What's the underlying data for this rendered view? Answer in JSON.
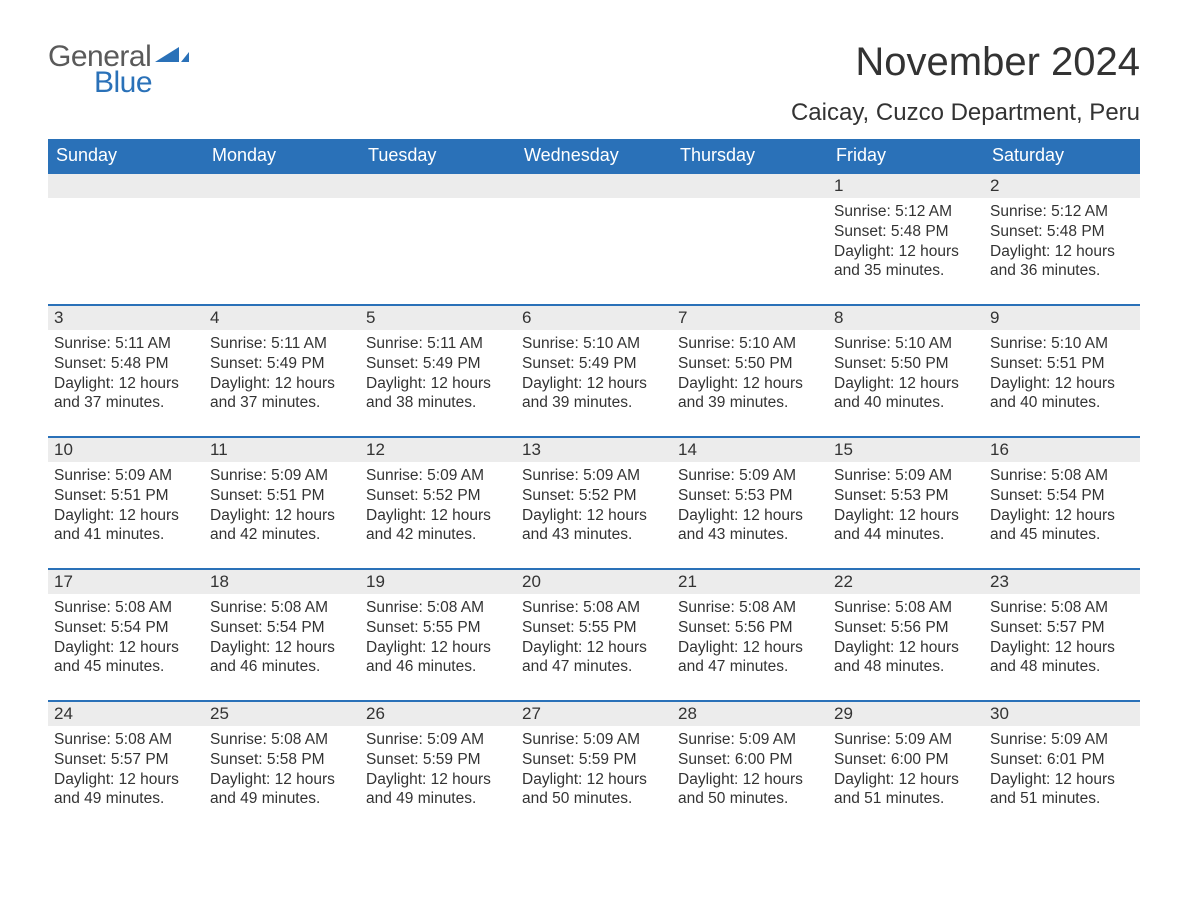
{
  "logo": {
    "word1": "General",
    "word2": "Blue",
    "icon_color": "#2a71b8",
    "text_gray": "#5a5a5a"
  },
  "title": "November 2024",
  "location": "Caicay, Cuzco Department, Peru",
  "colors": {
    "header_bg": "#2a71b8",
    "header_text": "#ffffff",
    "strip_bg": "#ececec",
    "body_text": "#333333",
    "row_border": "#2a71b8",
    "page_bg": "#ffffff"
  },
  "fonts": {
    "title_size_pt": 30,
    "location_size_pt": 18,
    "weekday_size_pt": 14,
    "daynum_size_pt": 13,
    "body_size_pt": 12,
    "family": "Arial"
  },
  "weekdays": [
    "Sunday",
    "Monday",
    "Tuesday",
    "Wednesday",
    "Thursday",
    "Friday",
    "Saturday"
  ],
  "first_weekday_index": 5,
  "days": [
    {
      "n": 1,
      "sunrise": "5:12 AM",
      "sunset": "5:48 PM",
      "daylight": "12 hours and 35 minutes."
    },
    {
      "n": 2,
      "sunrise": "5:12 AM",
      "sunset": "5:48 PM",
      "daylight": "12 hours and 36 minutes."
    },
    {
      "n": 3,
      "sunrise": "5:11 AM",
      "sunset": "5:48 PM",
      "daylight": "12 hours and 37 minutes."
    },
    {
      "n": 4,
      "sunrise": "5:11 AM",
      "sunset": "5:49 PM",
      "daylight": "12 hours and 37 minutes."
    },
    {
      "n": 5,
      "sunrise": "5:11 AM",
      "sunset": "5:49 PM",
      "daylight": "12 hours and 38 minutes."
    },
    {
      "n": 6,
      "sunrise": "5:10 AM",
      "sunset": "5:49 PM",
      "daylight": "12 hours and 39 minutes."
    },
    {
      "n": 7,
      "sunrise": "5:10 AM",
      "sunset": "5:50 PM",
      "daylight": "12 hours and 39 minutes."
    },
    {
      "n": 8,
      "sunrise": "5:10 AM",
      "sunset": "5:50 PM",
      "daylight": "12 hours and 40 minutes."
    },
    {
      "n": 9,
      "sunrise": "5:10 AM",
      "sunset": "5:51 PM",
      "daylight": "12 hours and 40 minutes."
    },
    {
      "n": 10,
      "sunrise": "5:09 AM",
      "sunset": "5:51 PM",
      "daylight": "12 hours and 41 minutes."
    },
    {
      "n": 11,
      "sunrise": "5:09 AM",
      "sunset": "5:51 PM",
      "daylight": "12 hours and 42 minutes."
    },
    {
      "n": 12,
      "sunrise": "5:09 AM",
      "sunset": "5:52 PM",
      "daylight": "12 hours and 42 minutes."
    },
    {
      "n": 13,
      "sunrise": "5:09 AM",
      "sunset": "5:52 PM",
      "daylight": "12 hours and 43 minutes."
    },
    {
      "n": 14,
      "sunrise": "5:09 AM",
      "sunset": "5:53 PM",
      "daylight": "12 hours and 43 minutes."
    },
    {
      "n": 15,
      "sunrise": "5:09 AM",
      "sunset": "5:53 PM",
      "daylight": "12 hours and 44 minutes."
    },
    {
      "n": 16,
      "sunrise": "5:08 AM",
      "sunset": "5:54 PM",
      "daylight": "12 hours and 45 minutes."
    },
    {
      "n": 17,
      "sunrise": "5:08 AM",
      "sunset": "5:54 PM",
      "daylight": "12 hours and 45 minutes."
    },
    {
      "n": 18,
      "sunrise": "5:08 AM",
      "sunset": "5:54 PM",
      "daylight": "12 hours and 46 minutes."
    },
    {
      "n": 19,
      "sunrise": "5:08 AM",
      "sunset": "5:55 PM",
      "daylight": "12 hours and 46 minutes."
    },
    {
      "n": 20,
      "sunrise": "5:08 AM",
      "sunset": "5:55 PM",
      "daylight": "12 hours and 47 minutes."
    },
    {
      "n": 21,
      "sunrise": "5:08 AM",
      "sunset": "5:56 PM",
      "daylight": "12 hours and 47 minutes."
    },
    {
      "n": 22,
      "sunrise": "5:08 AM",
      "sunset": "5:56 PM",
      "daylight": "12 hours and 48 minutes."
    },
    {
      "n": 23,
      "sunrise": "5:08 AM",
      "sunset": "5:57 PM",
      "daylight": "12 hours and 48 minutes."
    },
    {
      "n": 24,
      "sunrise": "5:08 AM",
      "sunset": "5:57 PM",
      "daylight": "12 hours and 49 minutes."
    },
    {
      "n": 25,
      "sunrise": "5:08 AM",
      "sunset": "5:58 PM",
      "daylight": "12 hours and 49 minutes."
    },
    {
      "n": 26,
      "sunrise": "5:09 AM",
      "sunset": "5:59 PM",
      "daylight": "12 hours and 49 minutes."
    },
    {
      "n": 27,
      "sunrise": "5:09 AM",
      "sunset": "5:59 PM",
      "daylight": "12 hours and 50 minutes."
    },
    {
      "n": 28,
      "sunrise": "5:09 AM",
      "sunset": "6:00 PM",
      "daylight": "12 hours and 50 minutes."
    },
    {
      "n": 29,
      "sunrise": "5:09 AM",
      "sunset": "6:00 PM",
      "daylight": "12 hours and 51 minutes."
    },
    {
      "n": 30,
      "sunrise": "5:09 AM",
      "sunset": "6:01 PM",
      "daylight": "12 hours and 51 minutes."
    }
  ],
  "labels": {
    "sunrise": "Sunrise:",
    "sunset": "Sunset:",
    "daylight": "Daylight:"
  }
}
